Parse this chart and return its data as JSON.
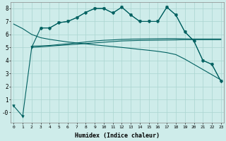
{
  "background_color": "#ceecea",
  "grid_color": "#aad4d0",
  "line_color": "#006060",
  "ylim": [
    -0.8,
    8.5
  ],
  "yticks": [
    0,
    1,
    2,
    3,
    4,
    5,
    6,
    7,
    8
  ],
  "ytick_labels": [
    "-0",
    "1",
    "2",
    "3",
    "4",
    "5",
    "6",
    "7",
    "8"
  ],
  "xlim": [
    -0.3,
    23.3
  ],
  "xticks": [
    0,
    1,
    2,
    3,
    4,
    5,
    6,
    7,
    8,
    9,
    10,
    11,
    12,
    13,
    14,
    15,
    16,
    17,
    18,
    19,
    20,
    21,
    22,
    23
  ],
  "x_labels": [
    "0",
    "1",
    "2",
    "3",
    "4",
    "5",
    "6",
    "7",
    "8",
    "9",
    "10",
    "11",
    "12",
    "13",
    "14",
    "15",
    "16",
    "17",
    "18",
    "19",
    "20",
    "21",
    "22",
    "23"
  ],
  "xlabel": "Humidex (Indice chaleur)",
  "line_zigzag": {
    "x": [
      0,
      1,
      2,
      3,
      4,
      5,
      6,
      7,
      8,
      9,
      10,
      11,
      12,
      13,
      14,
      15,
      16,
      17,
      18,
      19,
      20,
      21,
      22,
      23
    ],
    "y": [
      0.5,
      -0.3,
      5.0,
      6.5,
      6.5,
      6.9,
      7.0,
      7.3,
      7.7,
      8.0,
      8.0,
      7.65,
      8.1,
      7.5,
      7.0,
      7.0,
      7.0,
      8.1,
      7.5,
      6.2,
      5.5,
      4.0,
      3.7,
      2.4
    ],
    "marker": "v",
    "markersize": 2.5
  },
  "line_flat1": {
    "x": [
      2,
      3,
      4,
      5,
      6,
      7,
      8,
      9,
      10,
      11,
      12,
      13,
      14,
      15,
      16,
      17,
      18,
      19,
      20,
      21,
      22,
      23
    ],
    "y": [
      5.0,
      5.05,
      5.1,
      5.15,
      5.2,
      5.25,
      5.3,
      5.35,
      5.4,
      5.45,
      5.5,
      5.52,
      5.54,
      5.55,
      5.56,
      5.57,
      5.58,
      5.6,
      5.6,
      5.6,
      5.6,
      5.6
    ]
  },
  "line_flat2": {
    "x": [
      2,
      3,
      4,
      5,
      6,
      7,
      8,
      9,
      10,
      11,
      12,
      13,
      14,
      15,
      16,
      17,
      18,
      19,
      20,
      21,
      22,
      23
    ],
    "y": [
      5.1,
      5.12,
      5.15,
      5.22,
      5.28,
      5.35,
      5.42,
      5.5,
      5.55,
      5.58,
      5.62,
      5.64,
      5.65,
      5.66,
      5.67,
      5.68,
      5.68,
      5.66,
      5.65,
      5.65,
      5.65,
      5.65
    ]
  },
  "line_diagonal": {
    "x": [
      0,
      1,
      2,
      3,
      4,
      5,
      6,
      7,
      8,
      9,
      10,
      11,
      12,
      13,
      14,
      15,
      16,
      17,
      18,
      19,
      20,
      21,
      22,
      23
    ],
    "y": [
      6.8,
      6.45,
      6.0,
      5.75,
      5.62,
      5.52,
      5.42,
      5.35,
      5.28,
      5.2,
      5.13,
      5.07,
      5.0,
      4.93,
      4.85,
      4.78,
      4.7,
      4.6,
      4.45,
      4.1,
      3.7,
      3.3,
      2.9,
      2.5
    ]
  },
  "line_marked": {
    "x": [
      3,
      4,
      5,
      6,
      7,
      8,
      9,
      10,
      11,
      12,
      13,
      14,
      15,
      16,
      17,
      18,
      19,
      20,
      21,
      22,
      23
    ],
    "y": [
      6.5,
      6.5,
      6.9,
      7.0,
      7.3,
      7.7,
      8.0,
      8.0,
      7.65,
      8.1,
      7.5,
      7.0,
      7.0,
      7.0,
      8.1,
      7.5,
      6.2,
      5.5,
      4.0,
      3.7,
      2.4
    ],
    "marker": "P",
    "markersize": 2.5
  }
}
